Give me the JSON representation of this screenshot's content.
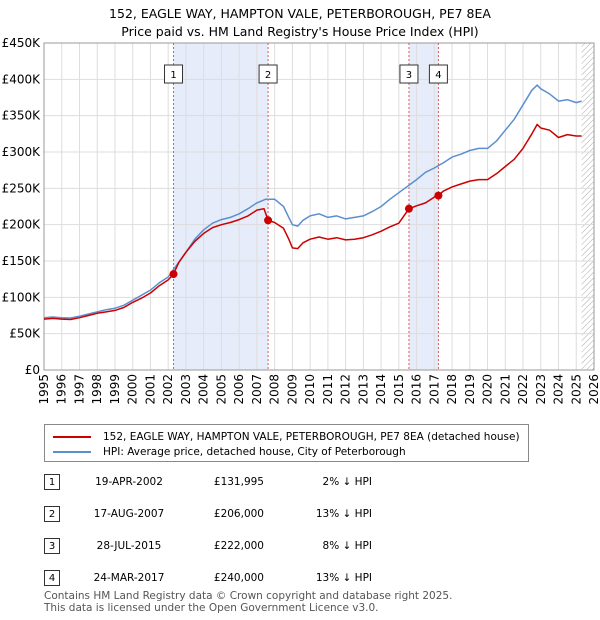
{
  "chart_data": {
    "type": "line",
    "title": "152, EAGLE WAY, HAMPTON VALE, PETERBOROUGH, PE7 8EA",
    "subtitle": "Price paid vs. HM Land Registry's House Price Index (HPI)",
    "xlabel": "",
    "ylabel": "",
    "xlim": [
      1995,
      2026
    ],
    "ylim": [
      0,
      450000
    ],
    "x_ticks": [
      "1995",
      "1996",
      "1997",
      "1998",
      "1999",
      "2000",
      "2001",
      "2002",
      "2003",
      "2004",
      "2005",
      "2006",
      "2007",
      "2008",
      "2009",
      "2010",
      "2011",
      "2012",
      "2013",
      "2014",
      "2015",
      "2016",
      "2017",
      "2018",
      "2019",
      "2020",
      "2021",
      "2022",
      "2023",
      "2024",
      "2025",
      "2026"
    ],
    "y_ticks": [
      {
        "value": 0,
        "label": "£0"
      },
      {
        "value": 50000,
        "label": "£50K"
      },
      {
        "value": 100000,
        "label": "£100K"
      },
      {
        "value": 150000,
        "label": "£150K"
      },
      {
        "value": 200000,
        "label": "£200K"
      },
      {
        "value": 250000,
        "label": "£250K"
      },
      {
        "value": 300000,
        "label": "£300K"
      },
      {
        "value": 350000,
        "label": "£350K"
      },
      {
        "value": 400000,
        "label": "£400K"
      },
      {
        "value": 450000,
        "label": "£450K"
      }
    ],
    "grid": true,
    "series": [
      {
        "name": "152, EAGLE WAY, HAMPTON VALE, PETERBOROUGH, PE7 8EA (detached house)",
        "color": "#cc0000",
        "x": [
          1995.0,
          1995.5,
          1996.0,
          1996.5,
          1997.0,
          1997.5,
          1998.0,
          1998.5,
          1999.0,
          1999.5,
          2000.0,
          2000.5,
          2001.0,
          2001.5,
          2002.0,
          2002.3,
          2002.6,
          2003.0,
          2003.5,
          2004.0,
          2004.5,
          2005.0,
          2005.5,
          2006.0,
          2006.5,
          2007.0,
          2007.4,
          2007.63,
          2008.0,
          2008.5,
          2008.8,
          2009.0,
          2009.3,
          2009.6,
          2010.0,
          2010.5,
          2011.0,
          2011.5,
          2012.0,
          2012.5,
          2013.0,
          2013.5,
          2014.0,
          2014.5,
          2015.0,
          2015.57,
          2016.0,
          2016.5,
          2017.0,
          2017.23,
          2017.5,
          2018.0,
          2018.5,
          2019.0,
          2019.5,
          2020.0,
          2020.5,
          2021.0,
          2021.5,
          2022.0,
          2022.5,
          2022.8,
          2023.0,
          2023.5,
          2024.0,
          2024.5,
          2025.0,
          2025.3
        ],
        "y": [
          70000,
          71000,
          70000,
          69500,
          72000,
          75000,
          78000,
          80000,
          82000,
          86000,
          93000,
          99000,
          106000,
          116000,
          124000,
          131995,
          148000,
          162000,
          177000,
          188000,
          196000,
          200000,
          203000,
          207000,
          212000,
          220000,
          222000,
          206000,
          203000,
          195000,
          180000,
          168000,
          167000,
          175000,
          180000,
          183000,
          180000,
          182000,
          179000,
          180000,
          182000,
          186000,
          191000,
          197000,
          202000,
          222000,
          226000,
          230000,
          238000,
          240000,
          246000,
          252000,
          256000,
          260000,
          262000,
          262000,
          270000,
          280000,
          290000,
          305000,
          325000,
          338000,
          333000,
          330000,
          320000,
          324000,
          322000,
          322000
        ]
      },
      {
        "name": "HPI: Average price, detached house, City of Peterborough",
        "color": "#5b8fd0",
        "x": [
          1995.0,
          1995.5,
          1996.0,
          1996.5,
          1997.0,
          1997.5,
          1998.0,
          1998.5,
          1999.0,
          1999.5,
          2000.0,
          2000.5,
          2001.0,
          2001.5,
          2002.0,
          2002.5,
          2003.0,
          2003.5,
          2004.0,
          2004.5,
          2005.0,
          2005.5,
          2006.0,
          2006.5,
          2007.0,
          2007.5,
          2008.0,
          2008.5,
          2008.8,
          2009.0,
          2009.3,
          2009.6,
          2010.0,
          2010.5,
          2011.0,
          2011.5,
          2012.0,
          2012.5,
          2013.0,
          2013.5,
          2014.0,
          2014.5,
          2015.0,
          2015.5,
          2016.0,
          2016.5,
          2017.0,
          2017.5,
          2018.0,
          2018.5,
          2019.0,
          2019.5,
          2020.0,
          2020.5,
          2021.0,
          2021.5,
          2022.0,
          2022.5,
          2022.8,
          2023.0,
          2023.5,
          2024.0,
          2024.5,
          2025.0,
          2025.3
        ],
        "y": [
          72000,
          73000,
          72000,
          71500,
          74000,
          77000,
          80000,
          83000,
          85000,
          89000,
          96000,
          103000,
          110000,
          120000,
          128000,
          145000,
          162000,
          180000,
          193000,
          202000,
          207000,
          210000,
          215000,
          222000,
          230000,
          235000,
          235000,
          225000,
          210000,
          200000,
          198000,
          206000,
          212000,
          215000,
          210000,
          212000,
          208000,
          210000,
          212000,
          218000,
          225000,
          235000,
          244000,
          253000,
          262000,
          272000,
          278000,
          285000,
          293000,
          297000,
          302000,
          305000,
          305000,
          315000,
          330000,
          345000,
          365000,
          385000,
          392000,
          387000,
          380000,
          370000,
          372000,
          368000,
          370000
        ]
      }
    ],
    "transactions": [
      {
        "label": "1",
        "x": 2002.3,
        "y": 131995
      },
      {
        "label": "2",
        "x": 2007.63,
        "y": 206000
      },
      {
        "label": "3",
        "x": 2015.57,
        "y": 222000
      },
      {
        "label": "4",
        "x": 2017.23,
        "y": 240000
      }
    ],
    "shaded_spans": [
      [
        2002.3,
        2007.63
      ],
      [
        2015.57,
        2017.23
      ]
    ],
    "hatched_from": 2025.3,
    "legend_position": "below"
  },
  "legend": {
    "property": "152, EAGLE WAY, HAMPTON VALE, PETERBOROUGH, PE7 8EA (detached house)",
    "hpi": "HPI: Average price, detached house, City of Peterborough"
  },
  "table": [
    {
      "num": "1",
      "date": "19-APR-2002",
      "price": "£131,995",
      "hpi": "2% ↓ HPI"
    },
    {
      "num": "2",
      "date": "17-AUG-2007",
      "price": "£206,000",
      "hpi": "13% ↓ HPI"
    },
    {
      "num": "3",
      "date": "28-JUL-2015",
      "price": "£222,000",
      "hpi": "8% ↓ HPI"
    },
    {
      "num": "4",
      "date": "24-MAR-2017",
      "price": "£240,000",
      "hpi": "13% ↓ HPI"
    }
  ],
  "footer": {
    "line1": "Contains HM Land Registry data © Crown copyright and database right 2025.",
    "line2": "This data is licensed under the Open Government Licence v3.0."
  },
  "colors": {
    "property": "#cc0000",
    "hpi": "#5b8fd0",
    "shade": "#e6ecfa",
    "marker_line": "#d06060"
  }
}
